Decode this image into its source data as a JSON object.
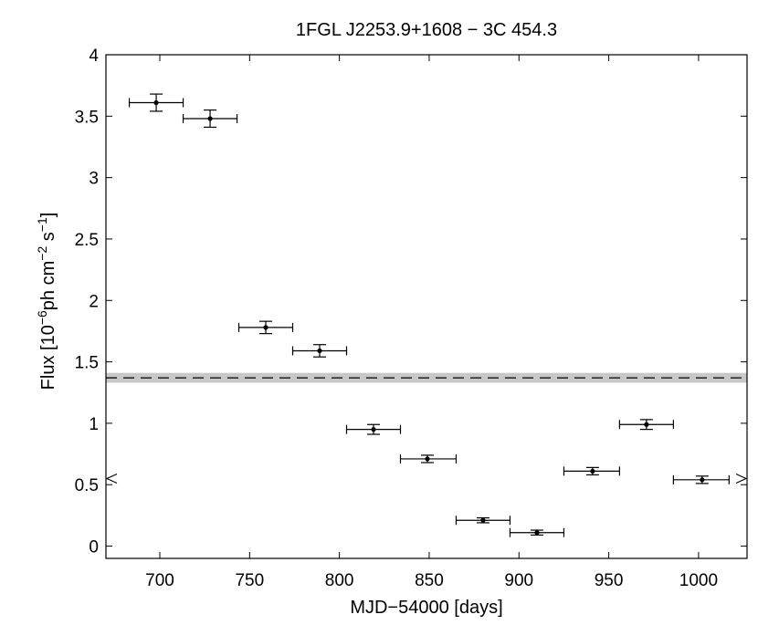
{
  "chart_data": {
    "type": "scatter",
    "title": "1FGL J2253.9+1608 − 3C 454.3",
    "xlabel": "MJD−54000 [days]",
    "ylabel": {
      "prefix": "Flux [10",
      "exp1": "−6",
      "mid": "ph cm",
      "exp2": "−2",
      "mid2": " s",
      "exp3": "−1",
      "suffix": "]"
    },
    "xlim": [
      670,
      1027
    ],
    "ylim": [
      -0.1,
      4
    ],
    "xticks": [
      700,
      750,
      800,
      850,
      900,
      950,
      1000
    ],
    "xtick_labels": [
      "700",
      "750",
      "800",
      "850",
      "900",
      "950",
      "1000"
    ],
    "yticks": [
      0,
      0.5,
      1,
      1.5,
      2,
      2.5,
      3,
      3.5,
      4
    ],
    "ytick_labels": [
      "0",
      "0.5",
      "1",
      "1.5",
      "2",
      "2.5",
      "3",
      "3.5",
      "4"
    ],
    "grid": false,
    "points": [
      {
        "x": 698,
        "y": 3.61,
        "x_lo": 683,
        "x_hi": 713,
        "y_err": 0.07
      },
      {
        "x": 728,
        "y": 3.48,
        "x_lo": 713,
        "x_hi": 743,
        "y_err": 0.07
      },
      {
        "x": 759,
        "y": 1.78,
        "x_lo": 744,
        "x_hi": 774,
        "y_err": 0.05
      },
      {
        "x": 789,
        "y": 1.59,
        "x_lo": 774,
        "x_hi": 804,
        "y_err": 0.05
      },
      {
        "x": 819,
        "y": 0.95,
        "x_lo": 804,
        "x_hi": 834,
        "y_err": 0.04
      },
      {
        "x": 849,
        "y": 0.71,
        "x_lo": 834,
        "x_hi": 865,
        "y_err": 0.03
      },
      {
        "x": 880,
        "y": 0.21,
        "x_lo": 865,
        "x_hi": 895,
        "y_err": 0.02
      },
      {
        "x": 910,
        "y": 0.11,
        "x_lo": 895,
        "x_hi": 925,
        "y_err": 0.02
      },
      {
        "x": 941,
        "y": 0.61,
        "x_lo": 925,
        "x_hi": 956,
        "y_err": 0.03
      },
      {
        "x": 971,
        "y": 0.99,
        "x_lo": 956,
        "x_hi": 986,
        "y_err": 0.04
      },
      {
        "x": 1002,
        "y": 0.54,
        "x_lo": 986,
        "x_hi": 1017,
        "y_err": 0.03
      }
    ],
    "mean_flux": {
      "value": 1.37,
      "band": [
        1.33,
        1.41
      ],
      "band_color": "#c8c8c8",
      "line_style": "dashed"
    },
    "edge_markers": {
      "value": 0.55,
      "shape": "open-triangle"
    }
  }
}
